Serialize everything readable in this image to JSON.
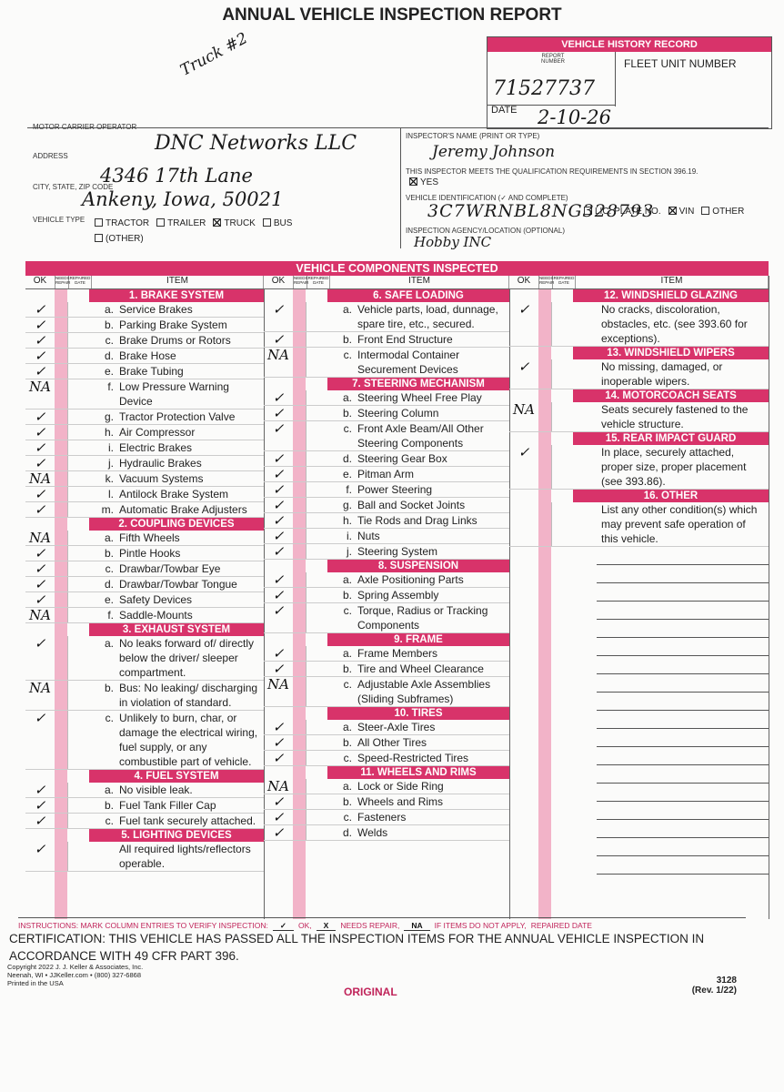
{
  "header": {
    "title": "ANNUAL VEHICLE INSPECTION REPORT",
    "note": "Truck #2"
  },
  "history": {
    "title": "VEHICLE HISTORY RECORD",
    "report_number_label": "REPORT NUMBER",
    "fleet_label": "FLEET UNIT NUMBER",
    "report_number": "71527737",
    "date_label": "DATE",
    "date": "2-10-26"
  },
  "carrier": {
    "operator_label": "MOTOR CARRIER OPERATOR",
    "operator": "DNC Networks LLC",
    "address_label": "ADDRESS",
    "address": "4346 17th Lane",
    "city_label": "CITY, STATE, ZIP CODE",
    "city": "Ankeny, Iowa, 50021",
    "vehicle_type_label": "VEHICLE TYPE",
    "vehicle_types": [
      {
        "label": "TRACTOR",
        "checked": false
      },
      {
        "label": "TRAILER",
        "checked": false
      },
      {
        "label": "TRUCK",
        "checked": true
      },
      {
        "label": "BUS",
        "checked": false
      },
      {
        "label": "(OTHER)",
        "checked": false
      }
    ]
  },
  "inspector": {
    "name_label": "INSPECTOR'S NAME (PRINT OR TYPE)",
    "name": "Jeremy Johnson",
    "qualification": "THIS INSPECTOR MEETS THE QUALIFICATION REQUIREMENTS IN SECTION 396.19.",
    "yes": {
      "label": "YES",
      "checked": true
    },
    "vehicle_id_label": "VEHICLE IDENTIFICATION (✓ AND COMPLETE)",
    "id_options": [
      {
        "label": "LIC. PLATE NO.",
        "checked": false
      },
      {
        "label": "VIN",
        "checked": true
      },
      {
        "label": "OTHER",
        "checked": false
      }
    ],
    "vin": "3C7WRNBL8NG328793",
    "agency_label": "INSPECTION AGENCY/LOCATION (OPTIONAL)",
    "agency": "Hobby INC"
  },
  "components": {
    "title": "VEHICLE COMPONENTS INSPECTED",
    "column_headers": {
      "ok": "OK",
      "needs_repair": "NEEDS REPAIR",
      "repaired_date": "REPAIRED DATE",
      "item": "ITEM"
    },
    "columns": [
      [
        {
          "title": "1. BRAKE SYSTEM",
          "items": [
            {
              "letter": "a.",
              "text": "Service Brakes",
              "mark": "✓"
            },
            {
              "letter": "b.",
              "text": "Parking Brake System",
              "mark": "✓"
            },
            {
              "letter": "c.",
              "text": "Brake Drums or Rotors",
              "mark": "✓"
            },
            {
              "letter": "d.",
              "text": "Brake Hose",
              "mark": "✓"
            },
            {
              "letter": "e.",
              "text": "Brake Tubing",
              "mark": "✓"
            },
            {
              "letter": "f.",
              "text": "Low Pressure Warning Device",
              "mark": "NA"
            },
            {
              "letter": "g.",
              "text": "Tractor Protection Valve",
              "mark": "✓"
            },
            {
              "letter": "h.",
              "text": "Air Compressor",
              "mark": "✓"
            },
            {
              "letter": "i.",
              "text": "Electric Brakes",
              "mark": "✓"
            },
            {
              "letter": "j.",
              "text": "Hydraulic Brakes",
              "mark": "✓"
            },
            {
              "letter": "k.",
              "text": "Vacuum Systems",
              "mark": "NA"
            },
            {
              "letter": "l.",
              "text": "Antilock Brake System",
              "mark": "✓"
            },
            {
              "letter": "m.",
              "text": "Automatic Brake Adjusters",
              "mark": "✓"
            }
          ]
        },
        {
          "title": "2. COUPLING DEVICES",
          "items": [
            {
              "letter": "a.",
              "text": "Fifth Wheels",
              "mark": "NA"
            },
            {
              "letter": "b.",
              "text": "Pintle Hooks",
              "mark": "✓"
            },
            {
              "letter": "c.",
              "text": "Drawbar/Towbar Eye",
              "mark": "✓"
            },
            {
              "letter": "d.",
              "text": "Drawbar/Towbar Tongue",
              "mark": "✓"
            },
            {
              "letter": "e.",
              "text": "Safety Devices",
              "mark": "✓"
            },
            {
              "letter": "f.",
              "text": "Saddle-Mounts",
              "mark": "NA"
            }
          ]
        },
        {
          "title": "3. EXHAUST SYSTEM",
          "items": [
            {
              "letter": "a.",
              "text": "No leaks forward of/ directly below the driver/ sleeper compartment.",
              "mark": "✓"
            },
            {
              "letter": "b.",
              "text": "Bus: No leaking/ discharging in violation of standard.",
              "mark": "NA"
            },
            {
              "letter": "c.",
              "text": "Unlikely to burn, char, or damage the electrical wiring, fuel supply, or any combustible part of vehicle.",
              "mark": "✓"
            }
          ]
        },
        {
          "title": "4. FUEL SYSTEM",
          "items": [
            {
              "letter": "a.",
              "text": "No visible leak.",
              "mark": "✓"
            },
            {
              "letter": "b.",
              "text": "Fuel Tank Filler Cap",
              "mark": "✓"
            },
            {
              "letter": "c.",
              "text": "Fuel tank securely attached.",
              "mark": "✓"
            }
          ]
        },
        {
          "title": "5. LIGHTING DEVICES",
          "items": [
            {
              "text": "All required lights/reflectors operable.",
              "mark": "✓"
            }
          ]
        }
      ],
      [
        {
          "title": "6. SAFE LOADING",
          "items": [
            {
              "letter": "a.",
              "text": "Vehicle parts, load, dunnage, spare tire, etc., secured.",
              "mark": "✓"
            },
            {
              "letter": "b.",
              "text": "Front End Structure",
              "mark": "✓"
            },
            {
              "letter": "c.",
              "text": "Intermodal Container Securement Devices",
              "mark": "NA"
            }
          ]
        },
        {
          "title": "7. STEERING MECHANISM",
          "items": [
            {
              "letter": "a.",
              "text": "Steering Wheel Free Play",
              "mark": "✓"
            },
            {
              "letter": "b.",
              "text": "Steering Column",
              "mark": "✓"
            },
            {
              "letter": "c.",
              "text": "Front Axle Beam/All Other Steering Components",
              "mark": "✓"
            },
            {
              "letter": "d.",
              "text": "Steering Gear Box",
              "mark": "✓"
            },
            {
              "letter": "e.",
              "text": "Pitman Arm",
              "mark": "✓"
            },
            {
              "letter": "f.",
              "text": "Power Steering",
              "mark": "✓"
            },
            {
              "letter": "g.",
              "text": "Ball and Socket Joints",
              "mark": "✓"
            },
            {
              "letter": "h.",
              "text": "Tie Rods and Drag Links",
              "mark": "✓"
            },
            {
              "letter": "i.",
              "text": "Nuts",
              "mark": "✓"
            },
            {
              "letter": "j.",
              "text": "Steering System",
              "mark": "✓"
            }
          ]
        },
        {
          "title": "8. SUSPENSION",
          "items": [
            {
              "letter": "a.",
              "text": "Axle Positioning Parts",
              "mark": "✓"
            },
            {
              "letter": "b.",
              "text": "Spring Assembly",
              "mark": "✓"
            },
            {
              "letter": "c.",
              "text": "Torque, Radius or Tracking Components",
              "mark": "✓"
            }
          ]
        },
        {
          "title": "9. FRAME",
          "items": [
            {
              "letter": "a.",
              "text": "Frame Members",
              "mark": "✓"
            },
            {
              "letter": "b.",
              "text": "Tire and Wheel Clearance",
              "mark": "✓"
            },
            {
              "letter": "c.",
              "text": "Adjustable Axle Assemblies (Sliding Subframes)",
              "mark": "NA"
            }
          ]
        },
        {
          "title": "10. TIRES",
          "items": [
            {
              "letter": "a.",
              "text": "Steer-Axle Tires",
              "mark": "✓"
            },
            {
              "letter": "b.",
              "text": "All Other Tires",
              "mark": "✓"
            },
            {
              "letter": "c.",
              "text": "Speed-Restricted Tires",
              "mark": "✓"
            }
          ]
        },
        {
          "title": "11. WHEELS AND RIMS",
          "items": [
            {
              "letter": "a.",
              "text": "Lock or Side Ring",
              "mark": "NA"
            },
            {
              "letter": "b.",
              "text": "Wheels and Rims",
              "mark": "✓"
            },
            {
              "letter": "c.",
              "text": "Fasteners",
              "mark": "✓"
            },
            {
              "letter": "d.",
              "text": "Welds",
              "mark": "✓"
            }
          ]
        }
      ],
      [
        {
          "title": "12. WINDSHIELD GLAZING",
          "items": [
            {
              "text": "No cracks, discoloration, obstacles, etc. (see 393.60 for exceptions).",
              "mark": "✓"
            }
          ]
        },
        {
          "title": "13. WINDSHIELD WIPERS",
          "items": [
            {
              "text": "No missing, damaged, or inoperable wipers.",
              "mark": "✓"
            }
          ]
        },
        {
          "title": "14. MOTORCOACH SEATS",
          "items": [
            {
              "text": "Seats securely fastened to the vehicle structure.",
              "mark": "NA"
            }
          ]
        },
        {
          "title": "15. REAR IMPACT GUARD",
          "items": [
            {
              "text": "In place, securely attached, proper size, proper placement (see 393.86).",
              "mark": "✓"
            }
          ]
        },
        {
          "title": "16. OTHER",
          "items": [
            {
              "text": "List any other condition(s) which may prevent safe operation of this vehicle."
            }
          ]
        }
      ]
    ]
  },
  "instructions": [
    "INSTRUCTIONS: MARK COLUMN ENTRIES TO VERIFY INSPECTION:",
    "✓",
    "OK,",
    "X",
    "NEEDS REPAIR,",
    "NA",
    "IF ITEMS DO NOT APPLY,",
    "REPAIRED DATE"
  ],
  "certification": "CERTIFICATION: THIS VEHICLE HAS PASSED ALL THE INSPECTION ITEMS FOR THE ANNUAL VEHICLE INSPECTION IN ACCORDANCE WITH 49 CFR PART 396.",
  "footer": {
    "copyright": "Copyright 2022 J. J. Keller & Associates, Inc.",
    "address": "Neenah, WI • JJKeller.com • (800) 327-6868",
    "printed": "Printed in the USA",
    "original": "ORIGINAL",
    "form_number": "3128",
    "revision": "(Rev. 1/22)"
  }
}
